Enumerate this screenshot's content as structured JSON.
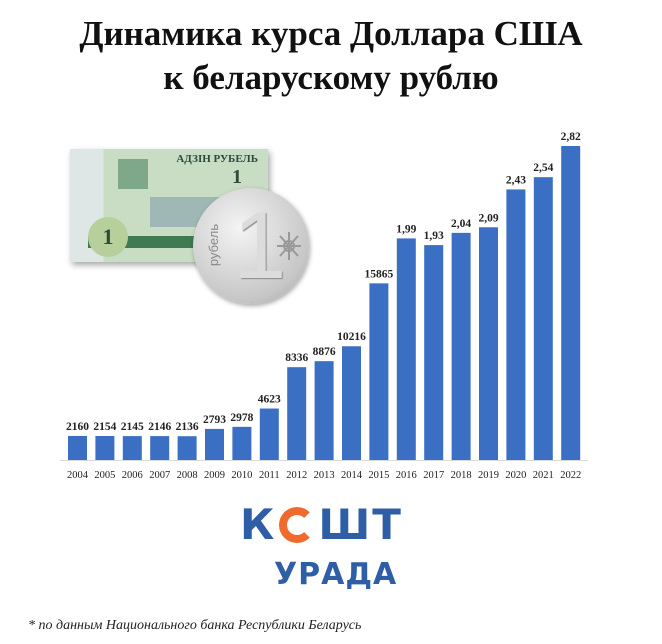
{
  "title_line1": "Динамика курса Доллара США",
  "title_line2": "к беларускому рублю",
  "bill": {
    "text": "АДЗІН РУБЕЛЬ",
    "denomination": "1"
  },
  "coin": {
    "numeral": "1",
    "word": "рубель"
  },
  "logo": {
    "line1_left": "К",
    "line1_right": "ШТ",
    "line2": "УРАДА",
    "brand_blue": "#2e5fa6",
    "brand_orange": "#ef6a2c"
  },
  "footnote": "* по данным Национального банка Республики Беларусь",
  "chart_data": {
    "type": "bar",
    "categories": [
      "2004",
      "2005",
      "2006",
      "2007",
      "2008",
      "2009",
      "2010",
      "2011",
      "2012",
      "2013",
      "2014",
      "2015",
      "2016",
      "2017",
      "2018",
      "2019",
      "2020",
      "2021",
      "2022"
    ],
    "labels": [
      "2160",
      "2154",
      "2145",
      "2146",
      "2136",
      "2793",
      "2978",
      "4623",
      "8336",
      "8876",
      "10216",
      "15865",
      "1,99",
      "1,93",
      "2,04",
      "2,09",
      "2,43",
      "2,54",
      "2,82"
    ],
    "values": [
      2160,
      2154,
      2145,
      2146,
      2136,
      2793,
      2978,
      4623,
      8336,
      8876,
      10216,
      15865,
      1.99,
      1.93,
      2.04,
      2.09,
      2.43,
      2.54,
      2.82
    ],
    "bar_color": "#3a6fc4",
    "grid": false,
    "legend": "none"
  }
}
